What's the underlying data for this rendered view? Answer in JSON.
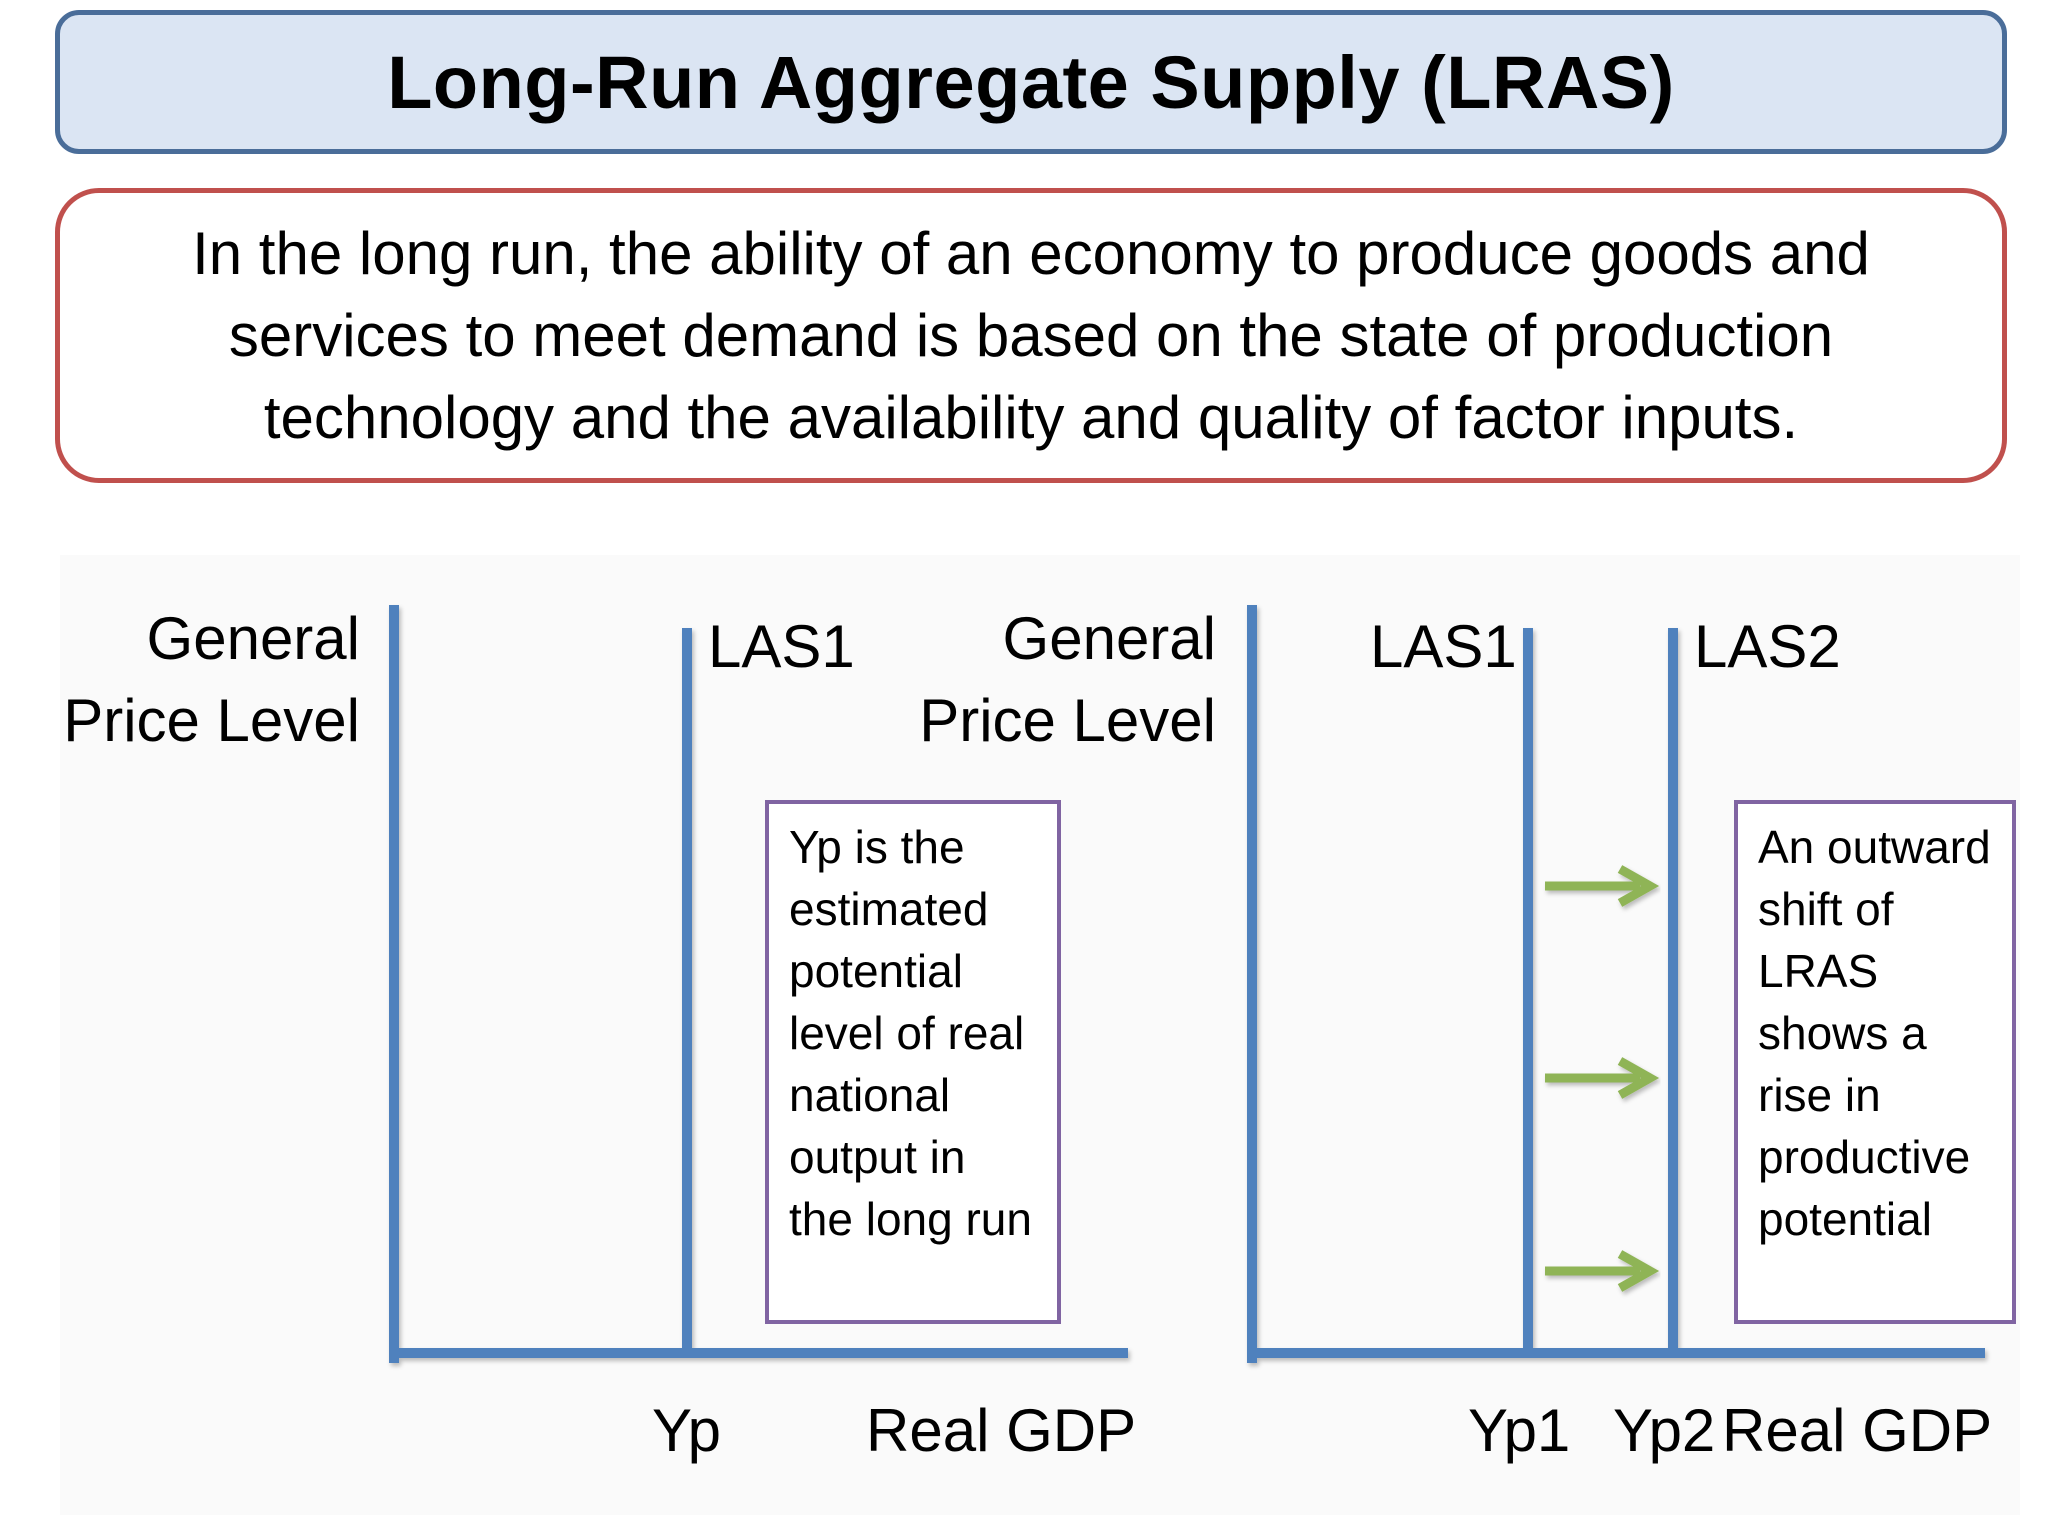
{
  "title": "Long-Run Aggregate Supply (LRAS)",
  "intro": "In the long run, the ability of an economy to produce goods and services to meet demand is based on the state of production technology and the availability and quality of factor inputs.",
  "colors": {
    "axis": "#4f81bd",
    "arrow": "#8fb457",
    "title_fill": "#dbe5f3",
    "title_border": "#4a6d99",
    "intro_border": "#c0504d",
    "note_border": "#8064a2"
  },
  "left_panel": {
    "ylabel": "General Price Level",
    "curve_label": "LAS1",
    "x_tick": "Yp",
    "xlabel": "Real GDP",
    "note": "Yp is the estimated potential level of real national output in the long run"
  },
  "right_panel": {
    "ylabel": "General Price Level",
    "curve1_label": "LAS1",
    "curve2_label": "LAS2",
    "x_tick1": "Yp1",
    "x_tick2": "Yp2",
    "xlabel": "Real GDP",
    "note": "An outward shift of LRAS shows a rise in productive potential",
    "arrow_count": 3,
    "arrow_icon": "right-arrow-icon"
  }
}
